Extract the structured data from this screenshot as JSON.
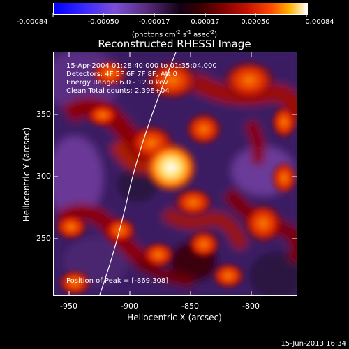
{
  "colorbar": {
    "ticks": [
      "-0.00084",
      "-0.00050",
      "-0.00017",
      "0.00017",
      "0.00050",
      "0.00084"
    ],
    "units_main": "(photons cm",
    "units_sup1": "-2",
    "units_mid": " s",
    "units_sup2": "-1",
    "units_mid2": " asec",
    "units_sup3": "-2",
    "units_end": ")"
  },
  "title": "Reconstructed RHESSI Image",
  "info": {
    "time": "15-Apr-2004 01:28:40.000 to 01:35:04.000",
    "detectors": "Detectors: 4F 5F 6F 7F 8F, Att 0",
    "energy": "Energy Range: 6.0 - 12.0 keV",
    "clean": "Clean     Total counts: 2.39E+04",
    "peak": "Position of Peak = [-869,308]"
  },
  "axes": {
    "xlabel": "Heliocentric X (arcsec)",
    "ylabel": "Heliocentric Y (arcsec)",
    "xticks": [
      "-950",
      "-900",
      "-850",
      "-800"
    ],
    "yticks": [
      "250",
      "300",
      "350"
    ]
  },
  "footer": "15-Jun-2013 16:34",
  "colors": {
    "background": "#000000",
    "foreground": "#ffffff",
    "purple": "#3b1e64",
    "red": "#c81a00",
    "hot": "#ffffff"
  }
}
